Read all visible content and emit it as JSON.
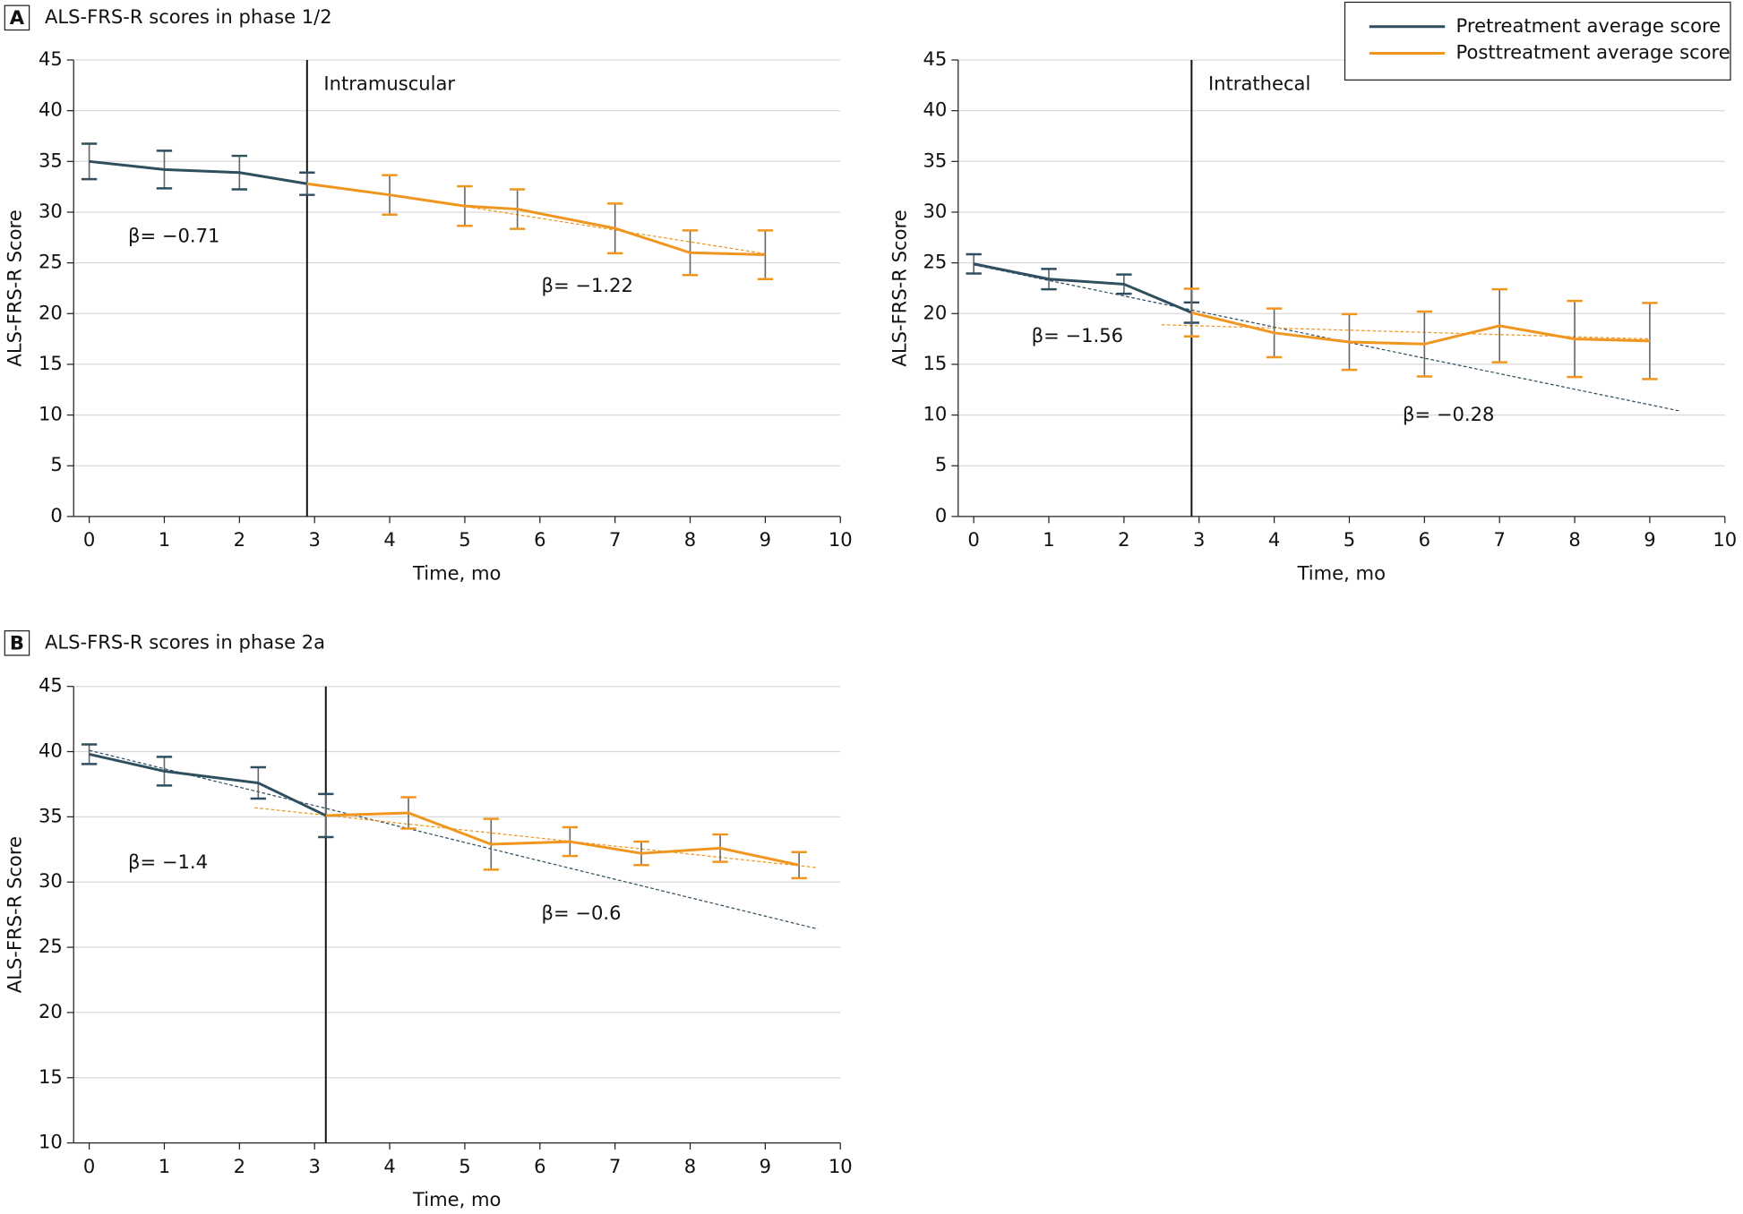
{
  "chart_data": [
    {
      "type": "line",
      "panel": "A",
      "title": "ALS-FRS-R scores in phase 1/2",
      "xlabel": "Time, mo",
      "ylabel": "ALS-FRS-R Score",
      "xlim": [
        0,
        10
      ],
      "ylim": [
        0,
        45
      ],
      "xticks": [
        0,
        1,
        2,
        3,
        4,
        5,
        6,
        7,
        8,
        9,
        10
      ],
      "yticks": [
        0,
        5,
        10,
        15,
        20,
        25,
        30,
        35,
        40,
        45
      ],
      "grid": true,
      "vline": {
        "x": 2.9,
        "label": "Intramuscular"
      },
      "series": [
        {
          "color": "#2f4f5f",
          "x": [
            0,
            1,
            2,
            2.9
          ],
          "values": [
            35,
            34.2,
            33.9,
            32.8
          ],
          "errors": [
            1.75,
            1.85,
            1.65,
            1.1
          ]
        },
        {
          "color": "#f0961e",
          "x": [
            2.9,
            4,
            5,
            5.7,
            7,
            8,
            9
          ],
          "values": [
            32.8,
            31.7,
            30.6,
            30.3,
            28.4,
            26,
            25.8
          ],
          "errors": [
            null,
            1.95,
            1.95,
            1.95,
            2.45,
            2.2,
            2.4
          ]
        }
      ],
      "trendlines": [
        {
          "color": "#f0961e",
          "x": [
            4.8,
            9
          ],
          "values": [
            30.8,
            25.9
          ]
        }
      ],
      "annotations": [
        "β= −0.71",
        "β= −1.22"
      ]
    },
    {
      "type": "line",
      "xlabel": "Time, mo",
      "ylabel": "ALS-FRS-R Score",
      "xlim": [
        0,
        10
      ],
      "ylim": [
        0,
        45
      ],
      "xticks": [
        0,
        1,
        2,
        3,
        4,
        5,
        6,
        7,
        8,
        9,
        10
      ],
      "yticks": [
        0,
        5,
        10,
        15,
        20,
        25,
        30,
        35,
        40,
        45
      ],
      "grid": true,
      "vline": {
        "x": 2.9,
        "label": "Intrathecal"
      },
      "legend": "top-right",
      "series": [
        {
          "name": "Pretreatment average score",
          "color": "#2f4f5f",
          "x": [
            0,
            1,
            2,
            2.9
          ],
          "values": [
            24.9,
            23.4,
            22.9,
            20.1
          ],
          "errors": [
            0.95,
            1.0,
            0.95,
            1.0
          ]
        },
        {
          "name": "Posttreatment average score",
          "color": "#f0961e",
          "x": [
            2.9,
            4,
            5,
            6,
            7,
            8,
            9
          ],
          "values": [
            20.1,
            18.1,
            17.2,
            17,
            18.8,
            17.5,
            17.3
          ],
          "errors": [
            2.35,
            2.4,
            2.75,
            3.2,
            3.6,
            3.75,
            3.75
          ]
        }
      ],
      "trendlines": [
        {
          "color": "#2f4f5f",
          "x": [
            0,
            9.4
          ],
          "values": [
            24.8,
            10.4
          ]
        },
        {
          "color": "#f0961e",
          "x": [
            2.5,
            9
          ],
          "values": [
            18.9,
            17.5
          ]
        }
      ],
      "annotations": [
        "β= −1.56",
        "β= −0.28"
      ]
    },
    {
      "type": "line",
      "panel": "B",
      "title": "ALS-FRS-R scores in phase 2a",
      "xlabel": "Time, mo",
      "ylabel": "ALS-FRS-R Score",
      "xlim": [
        0,
        10
      ],
      "ylim": [
        10,
        45
      ],
      "xticks": [
        0,
        1,
        2,
        3,
        4,
        5,
        6,
        7,
        8,
        9,
        10
      ],
      "yticks": [
        10,
        15,
        20,
        25,
        30,
        35,
        40,
        45
      ],
      "grid": true,
      "vline": {
        "x": 3.15
      },
      "series": [
        {
          "color": "#2f4f5f",
          "x": [
            0,
            1,
            2.25,
            3.15
          ],
          "values": [
            39.8,
            38.5,
            37.6,
            35.1
          ],
          "errors": [
            0.75,
            1.1,
            1.2,
            1.65
          ]
        },
        {
          "color": "#f0961e",
          "x": [
            3.15,
            4.25,
            5.35,
            6.4,
            7.35,
            8.4,
            9.45
          ],
          "values": [
            35.1,
            35.3,
            32.9,
            33.1,
            32.2,
            32.6,
            31.3
          ],
          "errors": [
            null,
            1.2,
            1.95,
            1.1,
            0.9,
            1.05,
            1.0
          ]
        }
      ],
      "trendlines": [
        {
          "color": "#2f4f5f",
          "x": [
            0,
            9.7
          ],
          "values": [
            40.1,
            26.4
          ]
        },
        {
          "color": "#f0961e",
          "x": [
            2.2,
            9.7
          ],
          "values": [
            35.7,
            31.1
          ]
        }
      ],
      "annotations": [
        "β= −1.4",
        "β= −0.6"
      ]
    }
  ]
}
